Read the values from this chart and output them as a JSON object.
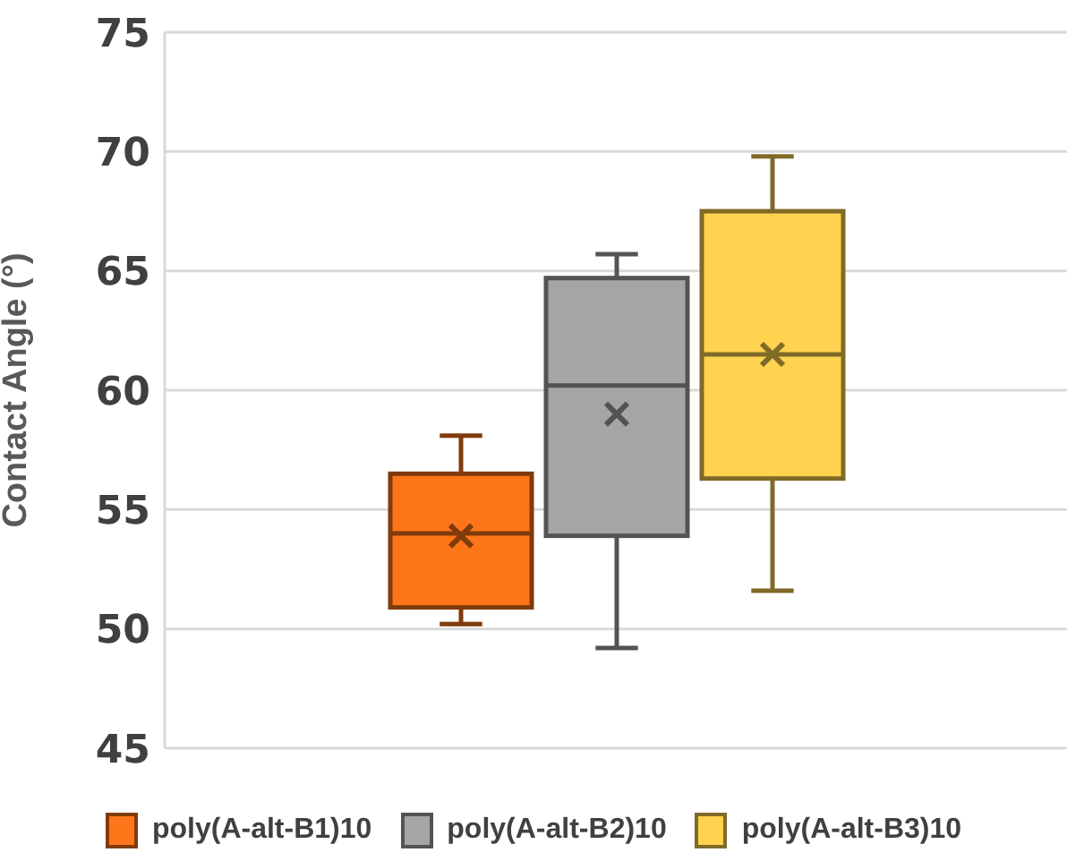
{
  "chart_data": {
    "type": "box",
    "ylabel": "Contact Angle (°)",
    "categories": [
      null
    ],
    "series": [
      {
        "name": "poly(A-alt-B1)10",
        "color": "#ff7519",
        "boxes": [
          {
            "low": 50.2,
            "q1": 50.9,
            "median": 54.0,
            "q3": 56.5,
            "high": 58.1,
            "mean": 53.9
          }
        ]
      },
      {
        "name": "poly(A-alt-B2)10",
        "color": "#a5a5a5",
        "boxes": [
          {
            "low": 49.2,
            "q1": 53.9,
            "median": 60.2,
            "q3": 64.7,
            "high": 65.7,
            "mean": 59.0
          }
        ]
      },
      {
        "name": "poly(A-alt-B3)10",
        "color": "#ffd34f",
        "boxes": [
          {
            "low": 51.6,
            "q1": 56.3,
            "median": 61.5,
            "q3": 67.5,
            "high": 69.8,
            "mean": 61.5
          }
        ]
      }
    ],
    "ylim": [
      45,
      75
    ],
    "yticks": [
      45,
      50,
      55,
      60,
      65,
      70,
      75
    ],
    "grid": "y",
    "legend": "bottom",
    "tick_labels": "y"
  }
}
